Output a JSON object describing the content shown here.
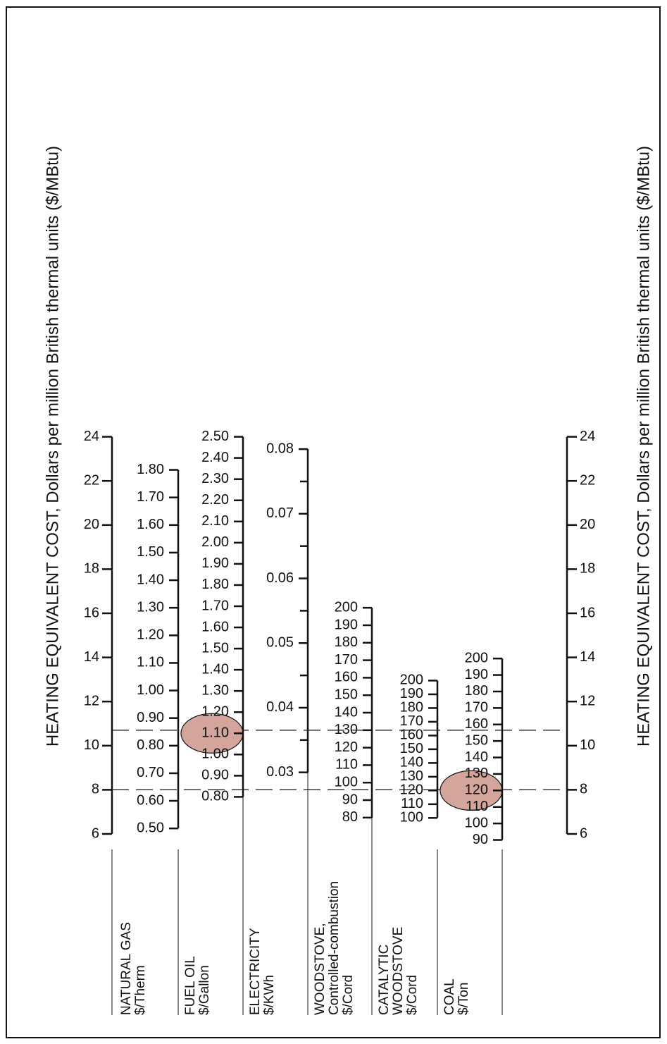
{
  "chart_data": {
    "type": "nomogram",
    "side_axis": {
      "title": "HEATING EQUIVALENT COST, Dollars per million British thermal units ($/MBtu)",
      "range": [
        6,
        24
      ],
      "major": [
        6,
        8,
        10,
        12,
        14,
        16,
        18,
        20,
        22,
        24
      ]
    },
    "fuel_scales": [
      {
        "name": "NATURAL GAS",
        "unit": "$/Therm",
        "labels": [
          "0.50",
          "0.60",
          "0.70",
          "0.80",
          "0.90",
          "1.00",
          "1.10",
          "1.20",
          "1.30",
          "1.40",
          "1.50",
          "1.60",
          "1.70",
          "1.80"
        ],
        "values": [
          0.5,
          0.6,
          0.7,
          0.8,
          0.9,
          1.0,
          1.1,
          1.2,
          1.3,
          1.4,
          1.5,
          1.6,
          1.7,
          1.8
        ]
      },
      {
        "name": "FUEL OIL",
        "unit": "$/Gallon",
        "labels": [
          "0.80",
          "0.90",
          "1.00",
          "1.10",
          "1.20",
          "1.30",
          "1.40",
          "1.50",
          "1.60",
          "1.70",
          "1.80",
          "1.90",
          "2.00",
          "2.10",
          "2.20",
          "2.30",
          "2.40",
          "2.50"
        ],
        "values": [
          0.8,
          0.9,
          1.0,
          1.1,
          1.2,
          1.3,
          1.4,
          1.5,
          1.6,
          1.7,
          1.8,
          1.9,
          2.0,
          2.1,
          2.2,
          2.3,
          2.4,
          2.5
        ]
      },
      {
        "name": "ELECTRICITY",
        "unit": "$/KWh",
        "labels": [
          "0.03",
          "0.04",
          "0.05",
          "0.06",
          "0.07",
          "0.08"
        ],
        "values": [
          0.03,
          0.04,
          0.05,
          0.06,
          0.07,
          0.08
        ],
        "minor": [
          0.035,
          0.045,
          0.055,
          0.065,
          0.075
        ]
      },
      {
        "name": "WOODSTOVE, Controlled-combustion",
        "unit": "$/Cord",
        "labels": [
          "80",
          "90",
          "100",
          "110",
          "120",
          "130",
          "140",
          "150",
          "160",
          "170",
          "180",
          "190",
          "200"
        ],
        "values": [
          80,
          90,
          100,
          110,
          120,
          130,
          140,
          150,
          160,
          170,
          180,
          190,
          200
        ]
      },
      {
        "name": "CATALYTIC WOODSTOVE",
        "unit": "$/Cord",
        "labels": [
          "100",
          "110",
          "120",
          "130",
          "140",
          "150",
          "160",
          "170",
          "180",
          "190",
          "200"
        ],
        "values": [
          100,
          110,
          120,
          130,
          140,
          150,
          160,
          170,
          180,
          190,
          200
        ]
      },
      {
        "name": "COAL",
        "unit": "$/Ton",
        "labels": [
          "90",
          "100",
          "110",
          "120",
          "130",
          "140",
          "150",
          "160",
          "170",
          "180",
          "190",
          "200"
        ],
        "values": [
          90,
          100,
          110,
          120,
          130,
          140,
          150,
          160,
          170,
          180,
          190,
          200
        ]
      }
    ],
    "example_lines": [
      10.7,
      8
    ],
    "highlights": [
      {
        "scale": "FUEL OIL",
        "value": "1.10"
      },
      {
        "scale": "COAL",
        "value": "120"
      }
    ],
    "highlight_color": "#d4a69b",
    "line_color": "#111111"
  }
}
